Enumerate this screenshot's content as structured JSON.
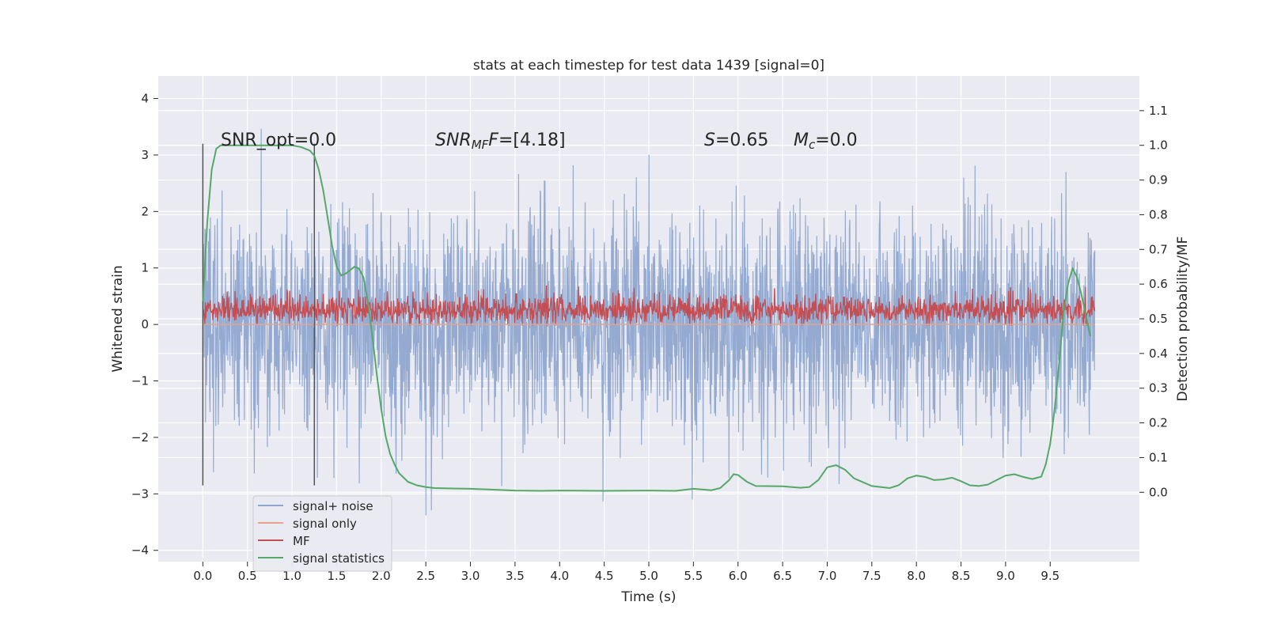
{
  "chart_data": {
    "type": "line",
    "title": "stats at each timestep for test data 1439 [signal=0]",
    "xlabel": "Time (s)",
    "ylabel_left": "Whitened strain",
    "ylabel_right": "Detection probability/MF",
    "xlim": [
      -0.5,
      10.5
    ],
    "ylim_left": [
      -4.2,
      4.4
    ],
    "ylim_right": [
      -0.2,
      1.2
    ],
    "x_ticks": [
      "0.0",
      "0.5",
      "1.0",
      "1.5",
      "2.0",
      "2.5",
      "3.0",
      "3.5",
      "4.0",
      "4.5",
      "5.0",
      "5.5",
      "6.0",
      "6.5",
      "7.0",
      "7.5",
      "8.0",
      "8.5",
      "9.0",
      "9.5"
    ],
    "y_ticks_left": [
      "4",
      "3",
      "2",
      "1",
      "0",
      "−1",
      "−2",
      "−3",
      "−4"
    ],
    "y_ticks_right": [
      "1.1",
      "1.0",
      "0.9",
      "0.8",
      "0.7",
      "0.6",
      "0.5",
      "0.4",
      "0.3",
      "0.2",
      "0.1",
      "0.0"
    ],
    "grid": true,
    "legend_location": "lower-left",
    "annotations": {
      "snr_opt": "SNR_opt=0.0",
      "snr_mf_sym": "SNR",
      "snr_mf_sub": "MF",
      "snr_mf_val": "=[4.18]",
      "s_sym": "S",
      "s_val": "=0.65",
      "mc_sym": "M",
      "mc_sub": "c",
      "mc_val": "=0.0"
    },
    "vertical_markers_x": [
      0.0,
      1.25
    ],
    "series": [
      {
        "name": "signal+ noise",
        "color": "#8fa6cf",
        "axis": "left",
        "kind": "noise",
        "amplitude_std": 1.0,
        "x_range": [
          0.0,
          10.0
        ]
      },
      {
        "name": "signal only",
        "color": "#e8a38a",
        "axis": "left",
        "x": [
          0.0,
          10.0
        ],
        "y": [
          0.0,
          0.0
        ]
      },
      {
        "name": "MF",
        "color": "#c44e52",
        "axis": "left",
        "kind": "noise",
        "baseline": 0.25,
        "amplitude_std": 0.14,
        "x_range": [
          0.0,
          10.0
        ]
      },
      {
        "name": "signal statistics",
        "color": "#55a868",
        "axis": "right",
        "x": [
          0.0,
          0.05,
          0.1,
          0.15,
          0.2,
          0.3,
          0.5,
          0.8,
          1.0,
          1.1,
          1.2,
          1.25,
          1.3,
          1.35,
          1.4,
          1.45,
          1.5,
          1.55,
          1.6,
          1.65,
          1.7,
          1.75,
          1.8,
          1.85,
          1.9,
          1.95,
          2.0,
          2.05,
          2.1,
          2.15,
          2.2,
          2.3,
          2.4,
          2.5,
          2.6,
          2.8,
          3.0,
          3.2,
          3.5,
          3.8,
          4.0,
          4.5,
          5.0,
          5.3,
          5.5,
          5.7,
          5.8,
          5.9,
          5.95,
          6.0,
          6.1,
          6.2,
          6.5,
          6.7,
          6.8,
          6.9,
          7.0,
          7.1,
          7.2,
          7.3,
          7.5,
          7.7,
          7.8,
          7.9,
          8.0,
          8.1,
          8.2,
          8.3,
          8.4,
          8.5,
          8.6,
          8.7,
          8.8,
          8.9,
          9.0,
          9.1,
          9.2,
          9.3,
          9.4,
          9.45,
          9.5,
          9.55,
          9.6,
          9.65,
          9.7,
          9.75,
          9.8,
          9.85,
          9.9,
          9.95
        ],
        "y": [
          0.55,
          0.78,
          0.93,
          0.99,
          1.0,
          1.0,
          1.0,
          1.0,
          1.0,
          0.995,
          0.985,
          0.97,
          0.93,
          0.87,
          0.79,
          0.71,
          0.65,
          0.625,
          0.63,
          0.64,
          0.65,
          0.645,
          0.62,
          0.55,
          0.45,
          0.34,
          0.24,
          0.16,
          0.11,
          0.08,
          0.055,
          0.03,
          0.02,
          0.015,
          0.012,
          0.011,
          0.01,
          0.008,
          0.005,
          0.004,
          0.005,
          0.004,
          0.005,
          0.004,
          0.01,
          0.006,
          0.012,
          0.035,
          0.052,
          0.05,
          0.03,
          0.018,
          0.017,
          0.013,
          0.015,
          0.035,
          0.072,
          0.078,
          0.065,
          0.04,
          0.018,
          0.012,
          0.02,
          0.04,
          0.048,
          0.044,
          0.035,
          0.037,
          0.042,
          0.032,
          0.02,
          0.018,
          0.022,
          0.035,
          0.048,
          0.052,
          0.044,
          0.038,
          0.045,
          0.08,
          0.14,
          0.24,
          0.37,
          0.52,
          0.6,
          0.645,
          0.62,
          0.57,
          0.51,
          0.45
        ]
      }
    ]
  }
}
